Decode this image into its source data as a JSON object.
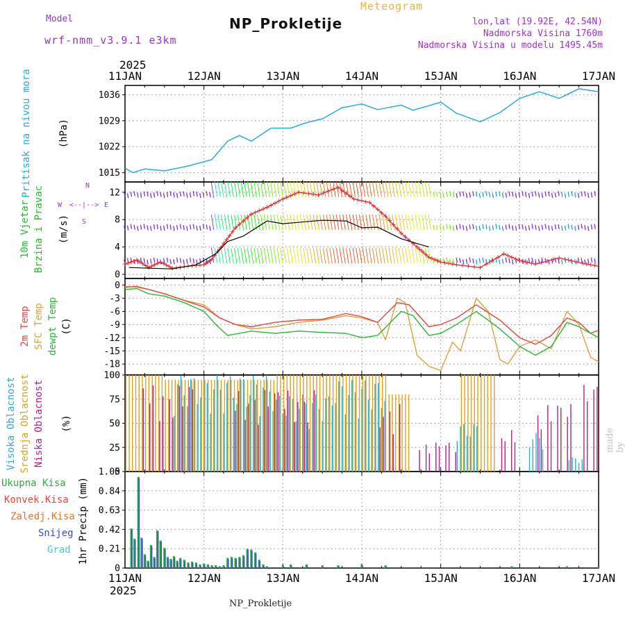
{
  "header": {
    "model_label": "Model",
    "model_name": "wrf-nmm_v3.9.1 e3km",
    "title": "NP_Prokletije",
    "subtitle": "Meteogram",
    "lonlat": "lon,lat (19.92E, 42.54N)",
    "elevation": "Nadmorska Visina 1760m",
    "model_elevation": "Nadmorska Visina u modelu 1495.45m"
  },
  "footer": {
    "station": "NP_Prokletije",
    "credit": "made by Angel"
  },
  "time_axis": {
    "year": "2025",
    "labels": [
      "11JAN",
      "12JAN",
      "13JAN",
      "14JAN",
      "15JAN",
      "16JAN",
      "17JAN"
    ]
  },
  "colors": {
    "pressure": "#29a9e0",
    "temp2m": "#e8433a",
    "sfc": "#d9a23a",
    "dew": "#27b836",
    "wind_obs": "#e03030",
    "wind_mean": "#000000",
    "purple": "#9933cc",
    "hi_cloud": "#2ab0c8",
    "mid_cloud": "#e0a020",
    "low_cloud": "#b0208a",
    "precip_total": "#2fa84a",
    "precip_conv": "#e8433a",
    "precip_frozen": "#f07020",
    "snow": "#3a4ad0",
    "graupel": "#40c8d0"
  },
  "chart_data": [
    {
      "id": "pressure",
      "type": "line",
      "title": "Pritisak na nivou mora",
      "ylabel": "(hPa)",
      "ylim": [
        1012.5,
        1038.5
      ],
      "yticks": [
        1015,
        1022,
        1029,
        1036
      ],
      "series": [
        {
          "name": "MSLP",
          "x": [
            0,
            0.1,
            0.25,
            0.5,
            0.8,
            1.1,
            1.3,
            1.45,
            1.6,
            1.85,
            2.1,
            2.3,
            2.5,
            2.75,
            3.0,
            3.2,
            3.5,
            3.65,
            4.0,
            4.2,
            4.5,
            4.75,
            5.0,
            5.25,
            5.5,
            5.75,
            6.0
          ],
          "y": [
            1016.2,
            1015.0,
            1016.0,
            1015.5,
            1016.8,
            1018.5,
            1023.5,
            1025.0,
            1023.5,
            1027.0,
            1027.0,
            1028.5,
            1029.5,
            1032.5,
            1033.5,
            1032.0,
            1033.2,
            1031.8,
            1034.0,
            1031.0,
            1028.7,
            1031.2,
            1035.0,
            1036.8,
            1035.0,
            1037.6,
            1036.8
          ]
        }
      ]
    },
    {
      "id": "wind",
      "type": "line",
      "title": "10m Vjetar Brzina i Pravac",
      "ylabel": "(m/s)",
      "ylim": [
        -0.6,
        13.5
      ],
      "yticks": [
        0,
        4,
        8,
        12
      ],
      "compass": "N ^ W <-|-> E v S",
      "series": [
        {
          "name": "wind_speed",
          "x": [
            0,
            0.15,
            0.3,
            0.45,
            0.6,
            0.8,
            1.0,
            1.1,
            1.25,
            1.4,
            1.6,
            1.8,
            2.0,
            2.2,
            2.45,
            2.7,
            2.9,
            3.1,
            3.3,
            3.5,
            3.7,
            3.85,
            4.0,
            4.2,
            4.5,
            4.8,
            5.0,
            5.2,
            5.5,
            5.8,
            6.0
          ],
          "y": [
            1.5,
            2.1,
            1.0,
            1.8,
            0.9,
            1.2,
            1.4,
            2.2,
            4.5,
            6.8,
            8.8,
            9.8,
            11.0,
            12.0,
            11.6,
            12.7,
            11.0,
            10.5,
            8.5,
            6.0,
            4.0,
            2.5,
            1.8,
            1.4,
            1.0,
            3.0,
            2.0,
            1.5,
            2.4,
            1.6,
            1.2
          ]
        },
        {
          "name": "wind_mean",
          "x": [
            0.05,
            0.3,
            0.6,
            0.9,
            1.15,
            1.3,
            1.5,
            1.8,
            2.0,
            2.2,
            2.5,
            2.8,
            3.0,
            3.2,
            3.5,
            3.7,
            3.85
          ],
          "y": [
            1.0,
            0.9,
            0.8,
            1.4,
            3.0,
            4.8,
            5.6,
            7.8,
            7.4,
            7.6,
            7.9,
            7.8,
            6.8,
            6.9,
            5.2,
            4.5,
            4.0
          ]
        }
      ]
    },
    {
      "id": "temperature",
      "type": "line",
      "title": "2m Temp / SFC Temp / dewpt Temp",
      "ylabel": "(C)",
      "ylim": [
        -20.5,
        1.5
      ],
      "yticks": [
        0,
        -3,
        -6,
        -9,
        -12,
        -15,
        -18
      ],
      "series": [
        {
          "name": "2m Temp",
          "x": [
            0,
            0.15,
            0.3,
            0.5,
            0.75,
            1.0,
            1.2,
            1.4,
            1.6,
            1.9,
            2.2,
            2.5,
            2.8,
            3.0,
            3.2,
            3.45,
            3.6,
            3.85,
            4.0,
            4.2,
            4.45,
            4.75,
            5.0,
            5.2,
            5.4,
            5.6,
            5.75,
            5.9,
            6.0
          ],
          "y": [
            -0.5,
            -0.3,
            -1.0,
            -2.0,
            -3.5,
            -5.0,
            -7.5,
            -9.0,
            -9.5,
            -8.5,
            -8.0,
            -7.8,
            -6.5,
            -7.2,
            -8.5,
            -4.0,
            -4.5,
            -9.5,
            -9.0,
            -7.5,
            -4.5,
            -8.0,
            -12.0,
            -13.5,
            -11.5,
            -7.5,
            -8.5,
            -11.0,
            -10.3
          ]
        },
        {
          "name": "SFC Temp",
          "x": [
            0,
            0.15,
            0.3,
            0.5,
            0.75,
            1.0,
            1.2,
            1.4,
            1.6,
            1.9,
            2.2,
            2.5,
            2.8,
            3.0,
            3.2,
            3.3,
            3.45,
            3.55,
            3.7,
            3.85,
            4.0,
            4.15,
            4.25,
            4.45,
            4.6,
            4.75,
            4.85,
            5.0,
            5.2,
            5.4,
            5.6,
            5.75,
            5.9,
            6.0
          ],
          "y": [
            -0.3,
            -0.5,
            -1.0,
            -2.0,
            -3.5,
            -4.5,
            -7.5,
            -9.0,
            -10.0,
            -9.5,
            -8.5,
            -8.0,
            -7.0,
            -7.5,
            -8.5,
            -12.5,
            -3.0,
            -4.0,
            -16.0,
            -18.5,
            -19.5,
            -13.0,
            -15.0,
            -3.0,
            -6.0,
            -17.0,
            -18.0,
            -14.0,
            -12.5,
            -14.5,
            -6.0,
            -9.0,
            -16.5,
            -17.5
          ]
        },
        {
          "name": "dewpt Temp",
          "x": [
            0,
            0.15,
            0.3,
            0.5,
            0.75,
            1.0,
            1.15,
            1.3,
            1.6,
            1.9,
            2.2,
            2.5,
            2.8,
            3.0,
            3.2,
            3.5,
            3.65,
            3.85,
            4.0,
            4.2,
            4.45,
            4.75,
            5.0,
            5.2,
            5.4,
            5.6,
            5.75,
            5.9,
            6.0
          ],
          "y": [
            -1.0,
            -0.8,
            -2.0,
            -2.5,
            -4.0,
            -6.0,
            -9.0,
            -11.5,
            -10.5,
            -11.0,
            -10.5,
            -10.8,
            -11.0,
            -12.0,
            -11.5,
            -6.0,
            -7.0,
            -11.5,
            -11.0,
            -9.0,
            -6.0,
            -10.0,
            -14.0,
            -16.0,
            -14.0,
            -8.5,
            -9.5,
            -11.0,
            -12.0
          ]
        }
      ]
    },
    {
      "id": "cloud",
      "type": "bar",
      "title": "Visoka / Srednja / Niska Oblacnost",
      "ylabel": "(%)",
      "ylim": [
        0,
        100
      ],
      "yticks": [
        0,
        25,
        50,
        75,
        100
      ],
      "series": [
        {
          "name": "Visoka Oblacnost",
          "segments": [
            [
              0.6,
              1.9,
              100
            ],
            [
              1.9,
              2.6,
              80
            ],
            [
              2.6,
              3.3,
              95
            ],
            [
              4.2,
              4.5,
              50
            ],
            [
              5.1,
              5.3,
              40
            ],
            [
              5.6,
              5.8,
              15
            ]
          ]
        },
        {
          "name": "Srednja Oblacnost",
          "segments": [
            [
              0.0,
              0.5,
              100
            ],
            [
              0.5,
              1.9,
              95
            ],
            [
              1.9,
              3.3,
              100
            ],
            [
              3.3,
              3.6,
              80
            ],
            [
              4.25,
              4.7,
              100
            ]
          ]
        },
        {
          "name": "Niska Oblacnost",
          "segments": [
            [
              0.2,
              0.9,
              90
            ],
            [
              1.3,
              2.4,
              85
            ],
            [
              3.2,
              3.5,
              70
            ],
            [
              3.7,
              4.2,
              30
            ],
            [
              4.7,
              5.0,
              45
            ],
            [
              5.2,
              5.7,
              70
            ],
            [
              5.75,
              6.0,
              90
            ]
          ]
        }
      ]
    },
    {
      "id": "precip",
      "type": "bar",
      "title": "1hr Precip",
      "ylabel": "(mm)",
      "ylim": [
        0,
        1.05
      ],
      "yticks": [
        0,
        0.21,
        0.42,
        0.63,
        0.84,
        1.05
      ],
      "legend": [
        "Ukupna Kisa",
        "Konvek.Kisa",
        "Zaledj.Kisa",
        "Snijeg",
        "Grad"
      ],
      "series": [
        {
          "name": "Ukupna Kisa",
          "x": [
            0.08,
            0.12,
            0.17,
            0.21,
            0.25,
            0.29,
            0.33,
            0.37,
            0.41,
            0.45,
            0.5,
            0.54,
            0.58,
            0.62,
            0.66,
            0.7,
            0.75,
            0.8,
            0.85,
            0.9,
            0.95,
            1.0,
            1.05,
            1.1,
            1.15,
            1.2,
            1.25,
            1.3,
            1.35,
            1.4,
            1.45,
            1.5,
            1.55,
            1.6,
            1.65,
            1.7,
            1.75,
            1.8,
            2.0,
            2.1,
            2.3,
            2.5,
            2.7,
            3.0,
            3.3,
            4.9,
            5.6,
            6.0
          ],
          "y": [
            0.43,
            0.32,
            0.99,
            0.33,
            0.15,
            0.08,
            0.25,
            0.12,
            0.41,
            0.3,
            0.22,
            0.12,
            0.1,
            0.13,
            0.08,
            0.11,
            0.09,
            0.06,
            0.07,
            0.06,
            0.04,
            0.05,
            0.04,
            0.03,
            0.03,
            0.02,
            0.03,
            0.11,
            0.12,
            0.11,
            0.12,
            0.14,
            0.21,
            0.2,
            0.17,
            0.09,
            0.04,
            0.02,
            0.03,
            0.04,
            0.04,
            0.03,
            0.03,
            0.04,
            0.03,
            0.02,
            0.02,
            0.01
          ]
        }
      ]
    }
  ]
}
